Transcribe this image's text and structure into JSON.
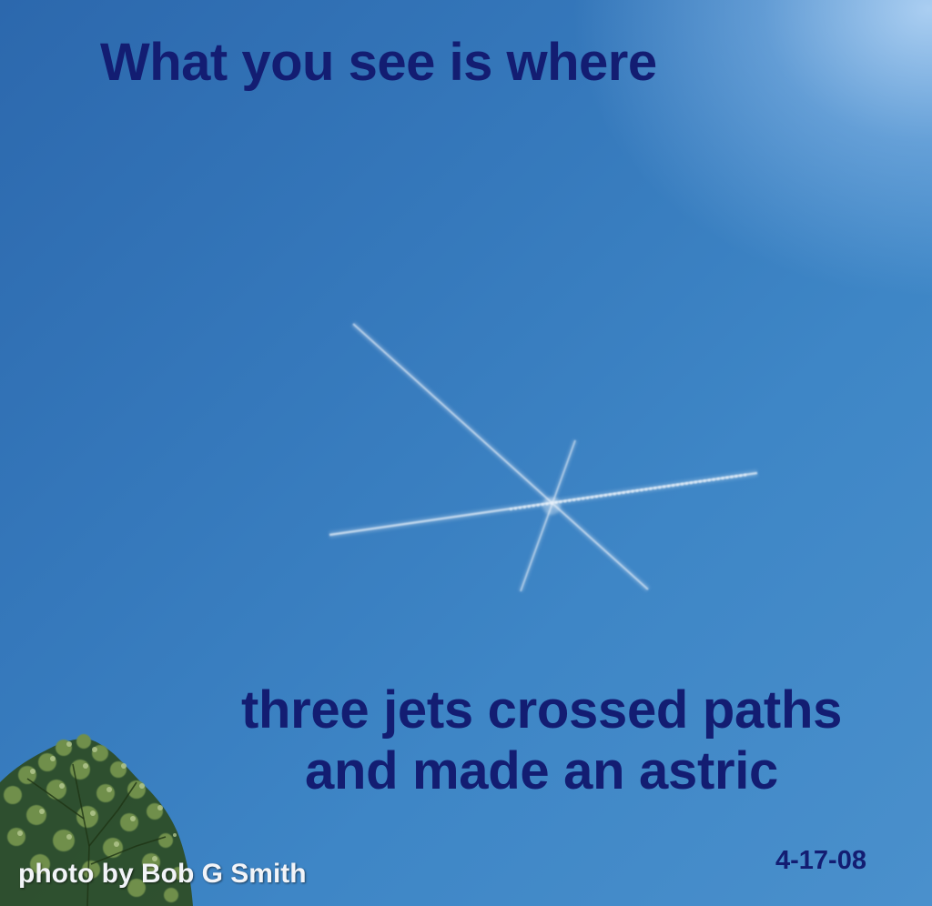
{
  "photo": {
    "headline": "What you see is where",
    "caption_line1": "three jets crossed paths",
    "caption_line2": "and made an astric",
    "date": "4-17-08",
    "credit": "photo by Bob G Smith"
  },
  "colors": {
    "sky": "#3d7fc0",
    "sky_glow": "#bedcfa",
    "text": "#131d72",
    "credit_text": "#f2f4f8",
    "contrail": "#dfeaf6",
    "tree_foliage": "#5a7a3e"
  },
  "scene_elements": [
    "sky",
    "contrails",
    "tree"
  ]
}
